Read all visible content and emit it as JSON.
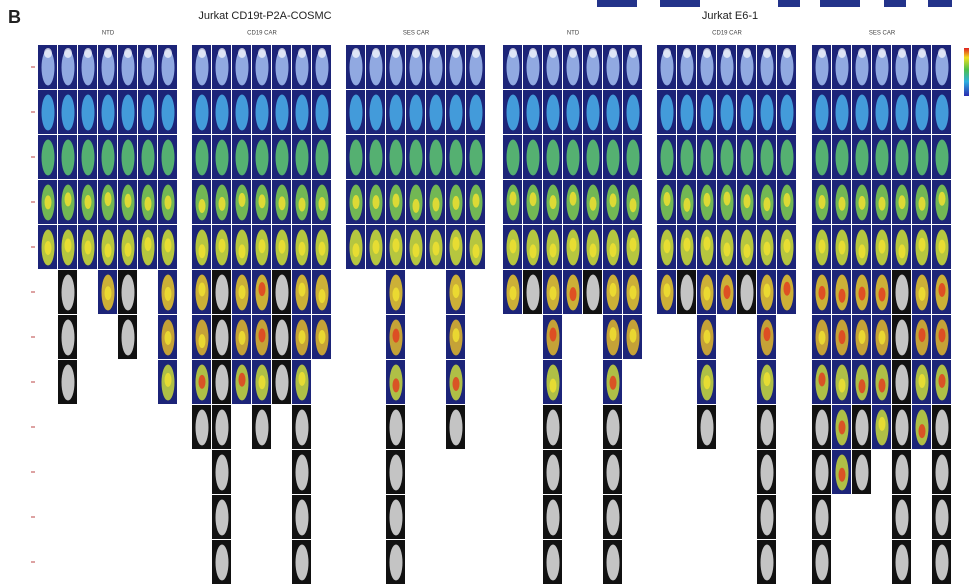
{
  "panel_label": "B",
  "groups": [
    {
      "title": "Jurkat CD19t-P2A-COSMC",
      "conditions": [
        "NTD",
        "CD19 CAR",
        "SES CAR"
      ]
    },
    {
      "title": "Jurkat E6-1",
      "conditions": [
        "NTD",
        "CD19 CAR",
        "SES CAR"
      ]
    }
  ]
}
